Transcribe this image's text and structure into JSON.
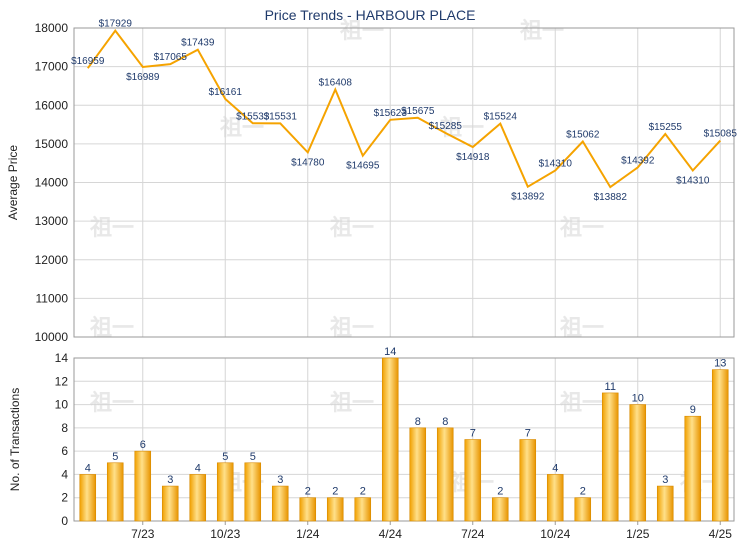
{
  "title": "Price Trends - HARBOUR PLACE",
  "watermark": "祖一",
  "chart_data": [
    {
      "type": "line",
      "ylabel": "Average Price",
      "ylim": [
        10000,
        18000
      ],
      "yticks": [
        10000,
        11000,
        12000,
        13000,
        14000,
        15000,
        16000,
        17000,
        18000
      ],
      "line_color": "#f5a300",
      "grid": true,
      "values": [
        16959,
        17929,
        16989,
        17065,
        17439,
        16161,
        15533,
        15531,
        14780,
        16408,
        14695,
        15623,
        15675,
        15285,
        14918,
        15524,
        13892,
        14310,
        15062,
        13882,
        14392,
        15255,
        14310,
        15085
      ],
      "labels": [
        "$16959",
        "$17929",
        "$16989",
        "$17065",
        "$17439",
        "$16161",
        "$15533",
        "$15531",
        "$14780",
        "$16408",
        "$14695",
        "$15623",
        "$15675",
        "$15285",
        "$14918",
        "$15524",
        "$13892",
        "$14310",
        "$15062",
        "$13882",
        "$14392",
        "$15255",
        "$14310",
        "$15085"
      ]
    },
    {
      "type": "bar",
      "ylabel": "No. of Transactions",
      "ylim": [
        0,
        14
      ],
      "yticks": [
        0,
        2,
        4,
        6,
        8,
        10,
        12,
        14
      ],
      "bar_color": "#f5a300",
      "grid": true,
      "values": [
        4,
        5,
        6,
        3,
        4,
        5,
        5,
        3,
        2,
        2,
        2,
        14,
        8,
        8,
        7,
        2,
        7,
        4,
        2,
        11,
        10,
        3,
        9,
        13
      ],
      "x_ticks": [
        {
          "index": 2,
          "label": "7/23"
        },
        {
          "index": 5,
          "label": "10/23"
        },
        {
          "index": 8,
          "label": "1/24"
        },
        {
          "index": 11,
          "label": "4/24"
        },
        {
          "index": 14,
          "label": "7/24"
        },
        {
          "index": 17,
          "label": "10/24"
        },
        {
          "index": 20,
          "label": "1/25"
        },
        {
          "index": 23,
          "label": "4/25"
        }
      ]
    }
  ]
}
